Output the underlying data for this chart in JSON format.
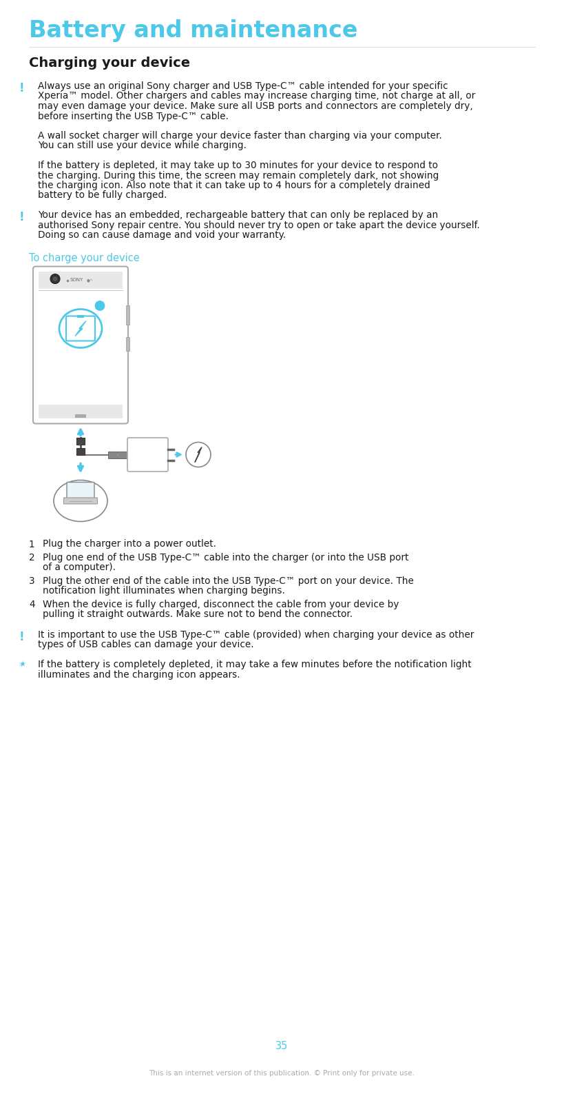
{
  "title": "Battery and maintenance",
  "title_color": "#4DC8E8",
  "section_heading": "Charging your device",
  "body_color": "#1a1a1a",
  "background_color": "#ffffff",
  "cyan_color": "#4DC8E8",
  "gray_color": "#aaaaaa",
  "dark_gray": "#555555",
  "subheading": "To charge your device",
  "subheading_color": "#4DC8E8",
  "numbered_steps": [
    [
      "1",
      "Plug the charger into a power outlet."
    ],
    [
      "2",
      "Plug one end of the USB Type-C™ cable into the charger (or into the USB port",
      "   of a computer)."
    ],
    [
      "3",
      "Plug the other end of the cable into the USB Type-C™ port on your device. The",
      "   notification light illuminates when charging begins."
    ],
    [
      "4",
      "When the device is fully charged, disconnect the cable from your device by",
      "   pulling it straight outwards. Make sure not to bend the connector."
    ]
  ],
  "page_number": "35",
  "footer_text": "This is an internet version of this publication. © Print only for private use."
}
